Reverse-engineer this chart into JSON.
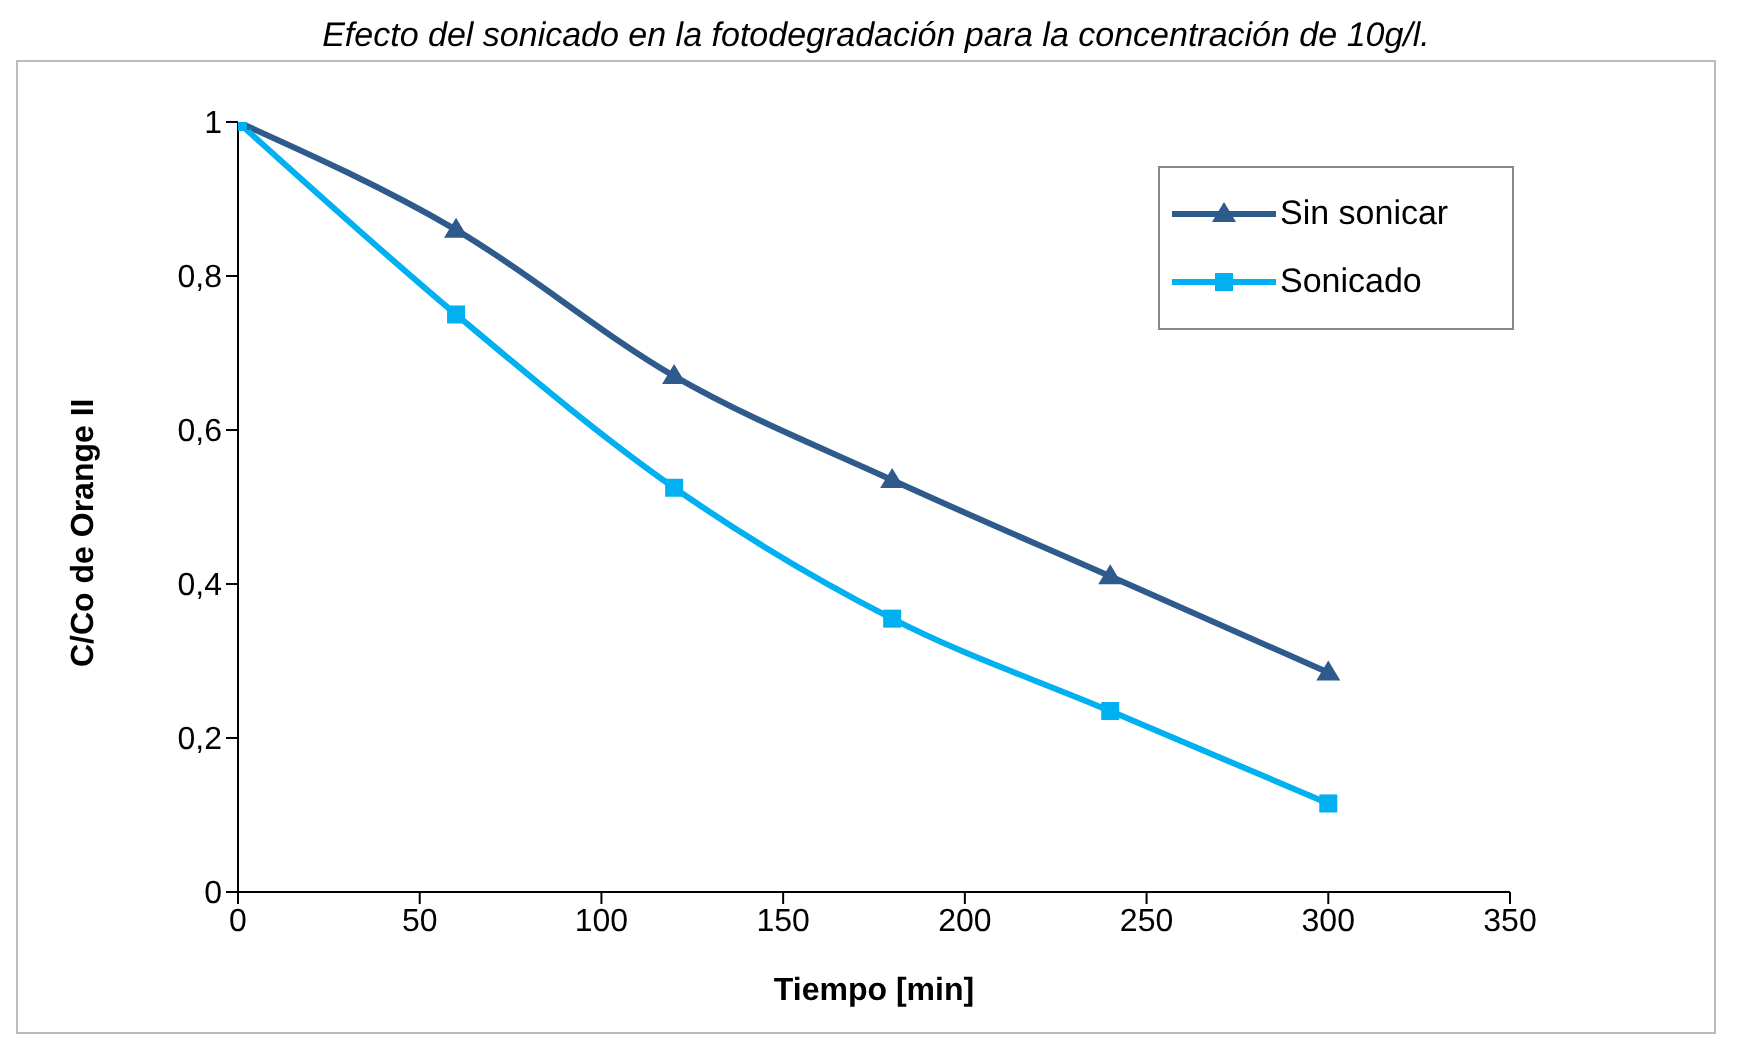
{
  "chart_data": {
    "type": "line",
    "title": "Efecto del sonicado en la fotodegradación para la concentración de 10g/l.",
    "xlabel": "Tiempo [min]",
    "ylabel": "C/Co de Orange II",
    "x": [
      0,
      60,
      120,
      180,
      240,
      300
    ],
    "series": [
      {
        "name": "Sin sonicar",
        "color": "#2e5a8c",
        "values": [
          1,
          0.86,
          0.67,
          0.535,
          0.41,
          0.285
        ],
        "marker": "triangle"
      },
      {
        "name": "Sonicado",
        "color": "#00b0f0",
        "values": [
          1,
          0.75,
          0.525,
          0.355,
          0.235,
          0.115
        ],
        "marker": "square"
      }
    ],
    "xlim": [
      0,
      350
    ],
    "xticks": [
      0,
      50,
      100,
      150,
      200,
      250,
      300,
      350
    ],
    "ylim": [
      0,
      1
    ],
    "yticks": [
      {
        "value": 0,
        "label": "0"
      },
      {
        "value": 0.2,
        "label": "0,2"
      },
      {
        "value": 0.4,
        "label": "0,4"
      },
      {
        "value": 0.6,
        "label": "0,6"
      },
      {
        "value": 0.8,
        "label": "0,8"
      },
      {
        "value": 1,
        "label": "1"
      }
    ],
    "grid": false,
    "legend": "top right"
  }
}
